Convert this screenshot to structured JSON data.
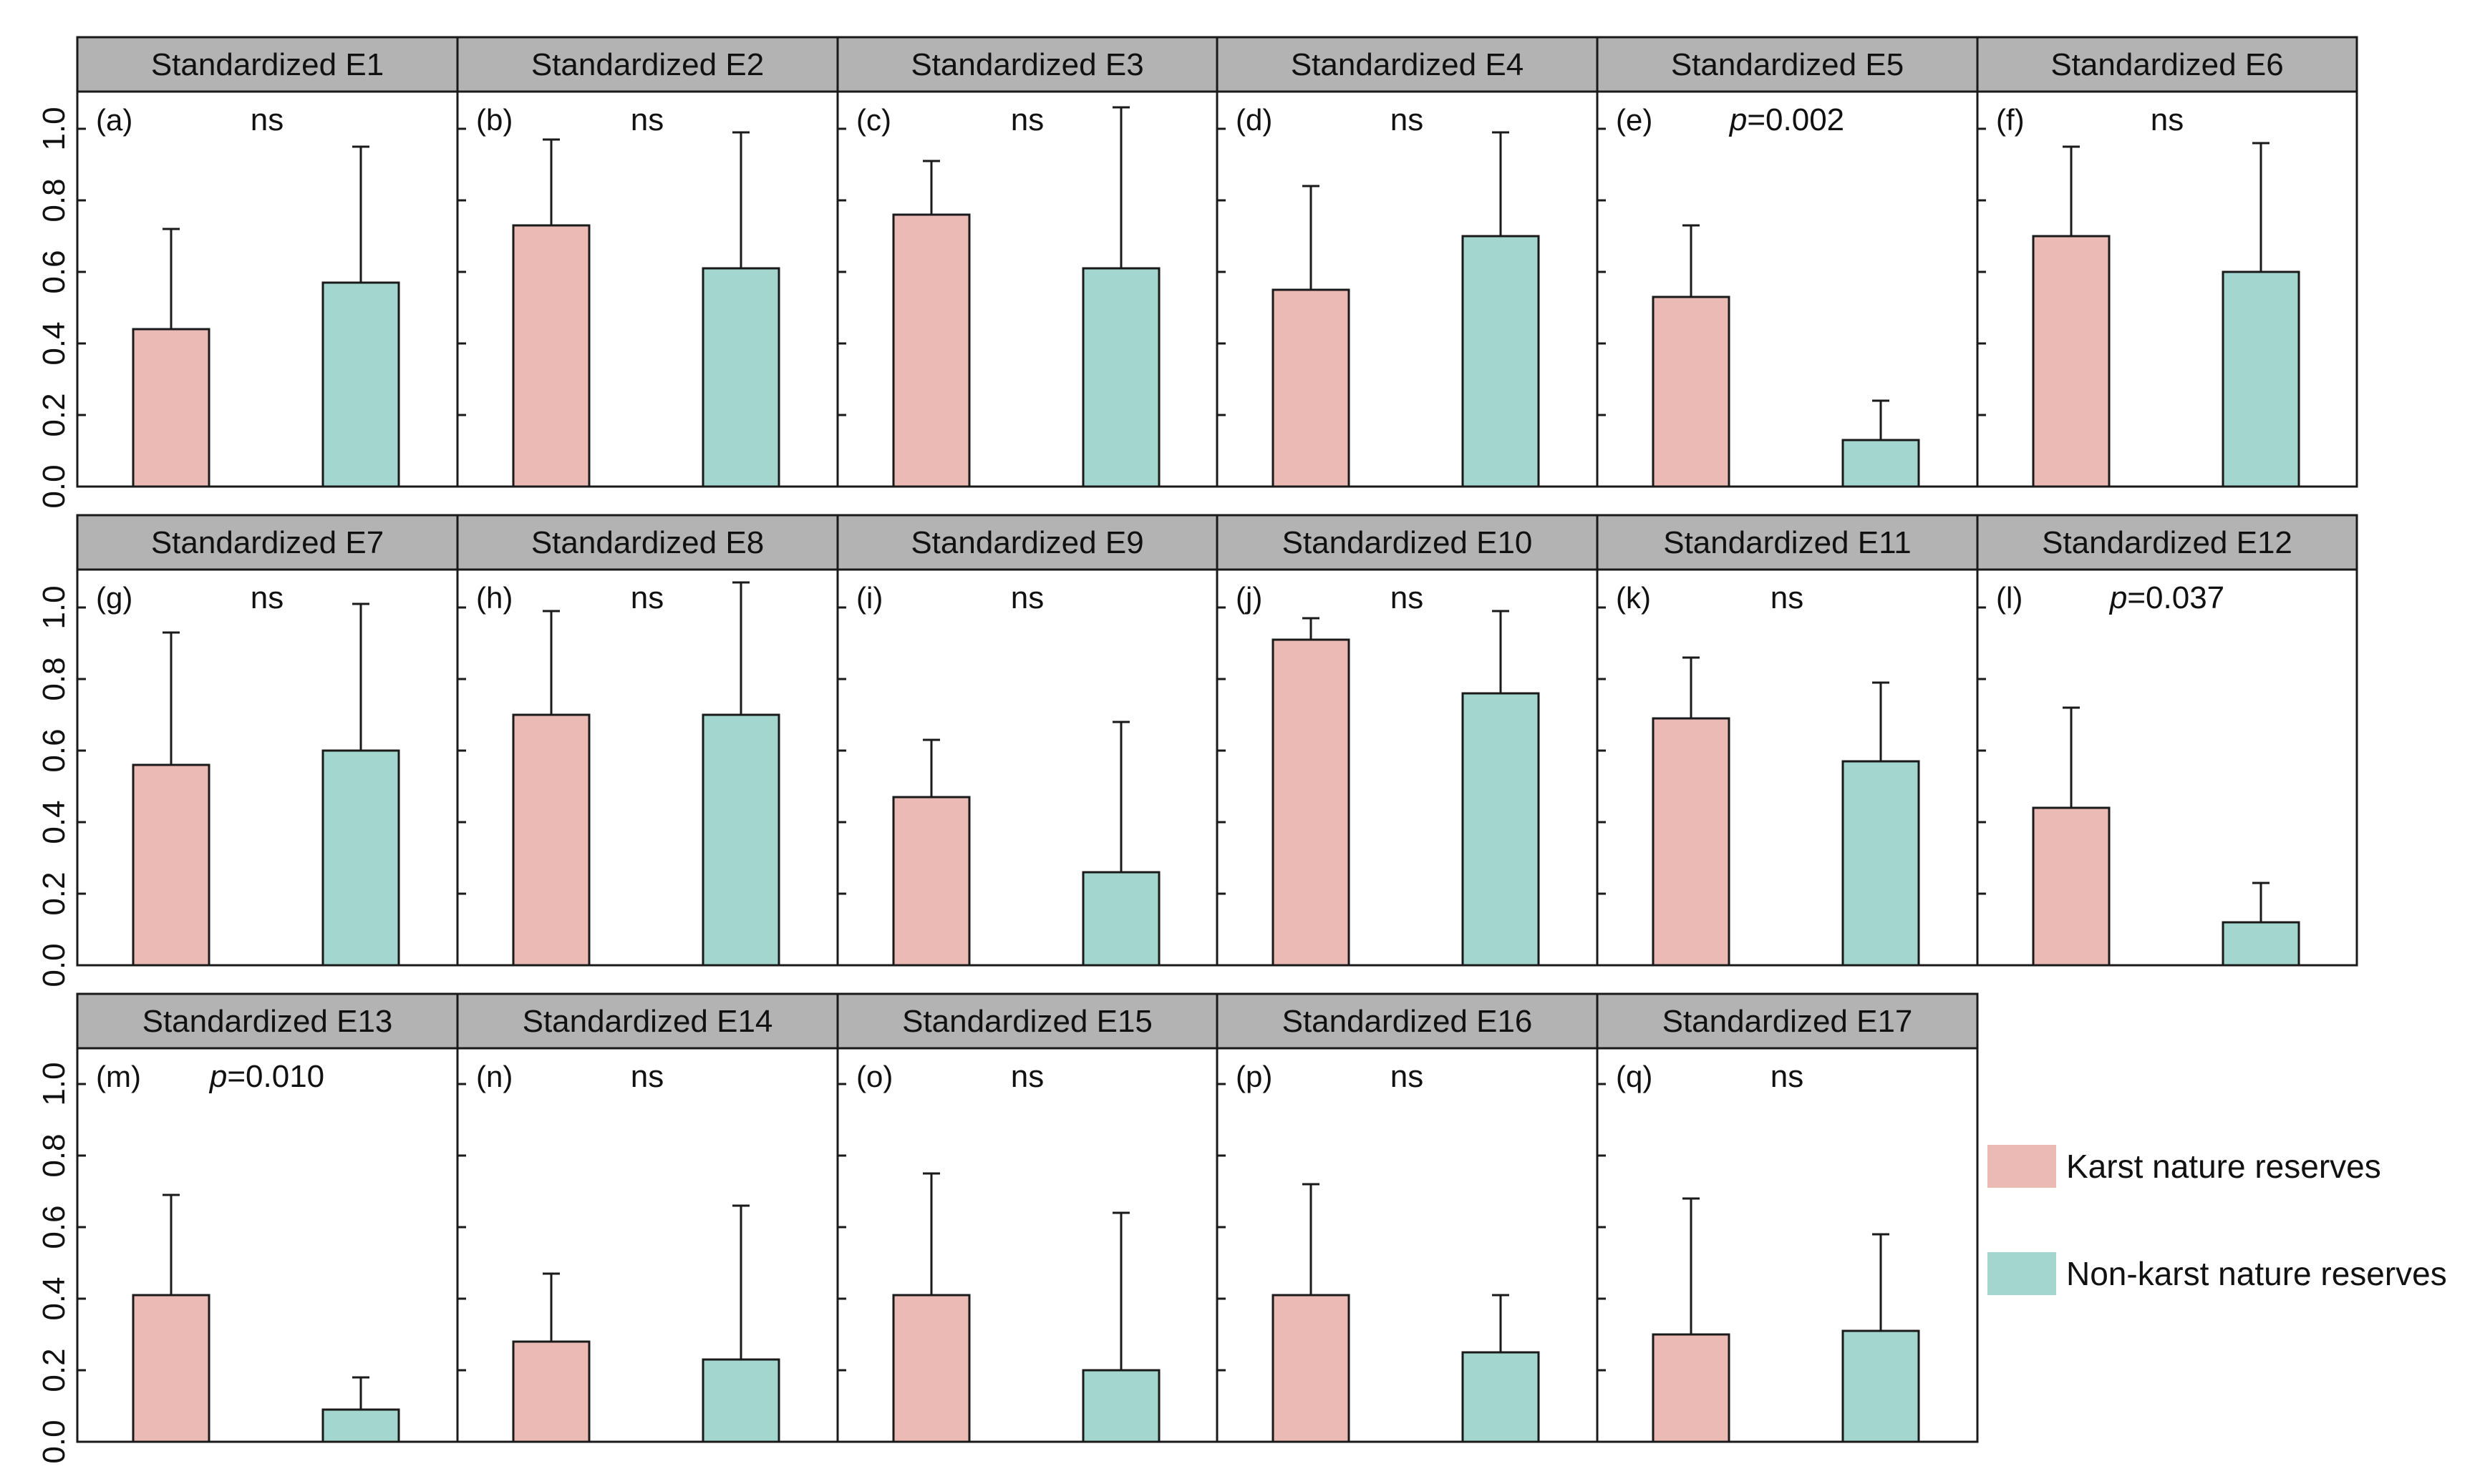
{
  "chart_data": {
    "type": "bar",
    "series_names": [
      "Karst nature reserves",
      "Non-karst nature reserves"
    ],
    "colors": {
      "karst": "#ebbab5",
      "nonkarst": "#a3d6cf",
      "strip": "#b3b3b3",
      "line": "#1a1a1a"
    },
    "ylim": [
      0,
      1.1
    ],
    "y_ticks": [
      "0.0",
      "0.2",
      "0.4",
      "0.6",
      "0.8",
      "1.0"
    ],
    "y_tick_values": [
      0,
      0.2,
      0.4,
      0.6,
      0.8,
      1.0
    ],
    "panels": [
      {
        "title": "Standardized E1",
        "label": "(a)",
        "sig": "ns",
        "karst": {
          "mean": 0.44,
          "err": 0.28
        },
        "nonkarst": {
          "mean": 0.57,
          "err": 0.38
        }
      },
      {
        "title": "Standardized E2",
        "label": "(b)",
        "sig": "ns",
        "karst": {
          "mean": 0.73,
          "err": 0.24
        },
        "nonkarst": {
          "mean": 0.61,
          "err": 0.38
        }
      },
      {
        "title": "Standardized E3",
        "label": "(c)",
        "sig": "ns",
        "karst": {
          "mean": 0.76,
          "err": 0.15
        },
        "nonkarst": {
          "mean": 0.61,
          "err": 0.45
        }
      },
      {
        "title": "Standardized E4",
        "label": "(d)",
        "sig": "ns",
        "karst": {
          "mean": 0.55,
          "err": 0.29
        },
        "nonkarst": {
          "mean": 0.7,
          "err": 0.29
        }
      },
      {
        "title": "Standardized E5",
        "label": "(e)",
        "sig": "p=0.002",
        "karst": {
          "mean": 0.53,
          "err": 0.2
        },
        "nonkarst": {
          "mean": 0.13,
          "err": 0.11
        }
      },
      {
        "title": "Standardized E6",
        "label": "(f)",
        "sig": "ns",
        "karst": {
          "mean": 0.7,
          "err": 0.25
        },
        "nonkarst": {
          "mean": 0.6,
          "err": 0.36
        }
      },
      {
        "title": "Standardized E7",
        "label": "(g)",
        "sig": "ns",
        "karst": {
          "mean": 0.56,
          "err": 0.37
        },
        "nonkarst": {
          "mean": 0.6,
          "err": 0.41
        }
      },
      {
        "title": "Standardized E8",
        "label": "(h)",
        "sig": "ns",
        "karst": {
          "mean": 0.7,
          "err": 0.29
        },
        "nonkarst": {
          "mean": 0.7,
          "err": 0.37
        }
      },
      {
        "title": "Standardized E9",
        "label": "(i)",
        "sig": "ns",
        "karst": {
          "mean": 0.47,
          "err": 0.16
        },
        "nonkarst": {
          "mean": 0.26,
          "err": 0.42
        }
      },
      {
        "title": "Standardized E10",
        "label": "(j)",
        "sig": "ns",
        "karst": {
          "mean": 0.91,
          "err": 0.06
        },
        "nonkarst": {
          "mean": 0.76,
          "err": 0.23
        }
      },
      {
        "title": "Standardized E11",
        "label": "(k)",
        "sig": "ns",
        "karst": {
          "mean": 0.69,
          "err": 0.17
        },
        "nonkarst": {
          "mean": 0.57,
          "err": 0.22
        }
      },
      {
        "title": "Standardized E12",
        "label": "(l)",
        "sig": "p=0.037",
        "karst": {
          "mean": 0.44,
          "err": 0.28
        },
        "nonkarst": {
          "mean": 0.12,
          "err": 0.11
        }
      },
      {
        "title": "Standardized E13",
        "label": "(m)",
        "sig": "p=0.010",
        "karst": {
          "mean": 0.41,
          "err": 0.28
        },
        "nonkarst": {
          "mean": 0.09,
          "err": 0.09
        }
      },
      {
        "title": "Standardized E14",
        "label": "(n)",
        "sig": "ns",
        "karst": {
          "mean": 0.28,
          "err": 0.19
        },
        "nonkarst": {
          "mean": 0.23,
          "err": 0.43
        }
      },
      {
        "title": "Standardized E15",
        "label": "(o)",
        "sig": "ns",
        "karst": {
          "mean": 0.41,
          "err": 0.34
        },
        "nonkarst": {
          "mean": 0.2,
          "err": 0.44
        }
      },
      {
        "title": "Standardized E16",
        "label": "(p)",
        "sig": "ns",
        "karst": {
          "mean": 0.41,
          "err": 0.31
        },
        "nonkarst": {
          "mean": 0.25,
          "err": 0.16
        }
      },
      {
        "title": "Standardized E17",
        "label": "(q)",
        "sig": "ns",
        "karst": {
          "mean": 0.3,
          "err": 0.38
        },
        "nonkarst": {
          "mean": 0.31,
          "err": 0.27
        }
      }
    ],
    "legend": {
      "position": "right",
      "items": [
        "Karst nature reserves",
        "Non-karst nature reserves"
      ]
    }
  }
}
